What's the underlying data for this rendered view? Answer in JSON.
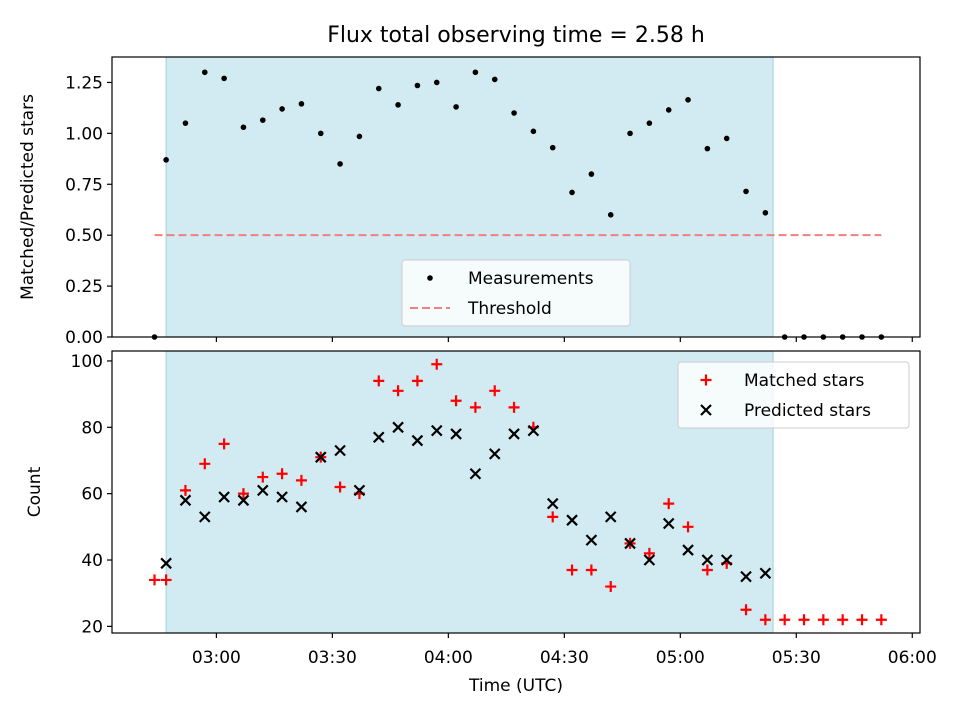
{
  "figure": {
    "title": "Flux total observing time = 2.58 h",
    "xlabel": "Time (UTC)"
  },
  "chart_data": [
    {
      "type": "scatter",
      "ylabel": "Matched/Predicted stars",
      "ylim": [
        0,
        1.375
      ],
      "yticks": [
        "0.00",
        "0.25",
        "0.50",
        "0.75",
        "1.00",
        "1.25"
      ],
      "xlim": [
        "02:33",
        "06:02"
      ],
      "xticks": [
        "03:00",
        "03:30",
        "04:00",
        "04:30",
        "05:00",
        "05:30",
        "06:00"
      ],
      "show_xtick_labels": false,
      "shaded_interval": {
        "start": "02:47",
        "end": "05:24",
        "color": "#add8e6"
      },
      "legend": {
        "position": "lower-center",
        "entries": [
          "Measurements",
          "Threshold"
        ]
      },
      "series": [
        {
          "name": "Measurements",
          "marker": "dot",
          "color": "#000000",
          "points": [
            [
              "02:44",
              0.0
            ],
            [
              "02:47",
              0.87
            ],
            [
              "02:52",
              1.05
            ],
            [
              "02:57",
              1.3
            ],
            [
              "03:02",
              1.27
            ],
            [
              "03:07",
              1.03
            ],
            [
              "03:12",
              1.065
            ],
            [
              "03:17",
              1.12
            ],
            [
              "03:22",
              1.145
            ],
            [
              "03:27",
              1.0
            ],
            [
              "03:32",
              0.85
            ],
            [
              "03:37",
              0.985
            ],
            [
              "03:42",
              1.22
            ],
            [
              "03:47",
              1.14
            ],
            [
              "03:52",
              1.235
            ],
            [
              "03:57",
              1.25
            ],
            [
              "04:02",
              1.13
            ],
            [
              "04:07",
              1.3
            ],
            [
              "04:12",
              1.265
            ],
            [
              "04:17",
              1.1
            ],
            [
              "04:22",
              1.01
            ],
            [
              "04:27",
              0.93
            ],
            [
              "04:32",
              0.71
            ],
            [
              "04:37",
              0.8
            ],
            [
              "04:42",
              0.6
            ],
            [
              "04:47",
              1.0
            ],
            [
              "04:52",
              1.05
            ],
            [
              "04:57",
              1.115
            ],
            [
              "05:02",
              1.165
            ],
            [
              "05:07",
              0.925
            ],
            [
              "05:12",
              0.975
            ],
            [
              "05:17",
              0.715
            ],
            [
              "05:22",
              0.61
            ],
            [
              "05:27",
              0.0
            ],
            [
              "05:32",
              0.0
            ],
            [
              "05:37",
              0.0
            ],
            [
              "05:42",
              0.0
            ],
            [
              "05:47",
              0.0
            ],
            [
              "05:52",
              0.0
            ]
          ]
        },
        {
          "name": "Threshold",
          "type": "line",
          "style": "dashed",
          "color": "#f08080",
          "points": [
            [
              "02:44",
              0.5
            ],
            [
              "05:52",
              0.5
            ]
          ]
        }
      ]
    },
    {
      "type": "scatter",
      "ylabel": "Count",
      "ylim": [
        18,
        103
      ],
      "yticks": [
        "20",
        "40",
        "60",
        "80",
        "100"
      ],
      "xlim": [
        "02:33",
        "06:02"
      ],
      "xticks": [
        "03:00",
        "03:30",
        "04:00",
        "04:30",
        "05:00",
        "05:30",
        "06:00"
      ],
      "show_xtick_labels": true,
      "shaded_interval": {
        "start": "02:47",
        "end": "05:24",
        "color": "#add8e6"
      },
      "legend": {
        "position": "top-right",
        "entries": [
          "Matched stars",
          "Predicted stars"
        ]
      },
      "series": [
        {
          "name": "Matched stars",
          "marker": "plus",
          "color": "#ff0000",
          "points": [
            [
              "02:44",
              34
            ],
            [
              "02:47",
              34
            ],
            [
              "02:52",
              61
            ],
            [
              "02:57",
              69
            ],
            [
              "03:02",
              75
            ],
            [
              "03:07",
              60
            ],
            [
              "03:12",
              65
            ],
            [
              "03:17",
              66
            ],
            [
              "03:22",
              64
            ],
            [
              "03:27",
              71
            ],
            [
              "03:32",
              62
            ],
            [
              "03:37",
              60
            ],
            [
              "03:42",
              94
            ],
            [
              "03:47",
              91
            ],
            [
              "03:52",
              94
            ],
            [
              "03:57",
              99
            ],
            [
              "04:02",
              88
            ],
            [
              "04:07",
              86
            ],
            [
              "04:12",
              91
            ],
            [
              "04:17",
              86
            ],
            [
              "04:22",
              80
            ],
            [
              "04:27",
              53
            ],
            [
              "04:32",
              37
            ],
            [
              "04:37",
              37
            ],
            [
              "04:42",
              32
            ],
            [
              "04:47",
              45
            ],
            [
              "04:52",
              42
            ],
            [
              "04:57",
              57
            ],
            [
              "05:02",
              50
            ],
            [
              "05:07",
              37
            ],
            [
              "05:12",
              39
            ],
            [
              "05:17",
              25
            ],
            [
              "05:22",
              22
            ],
            [
              "05:27",
              22
            ],
            [
              "05:32",
              22
            ],
            [
              "05:37",
              22
            ],
            [
              "05:42",
              22
            ],
            [
              "05:47",
              22
            ],
            [
              "05:52",
              22
            ]
          ]
        },
        {
          "name": "Predicted stars",
          "marker": "x",
          "color": "#000000",
          "points": [
            [
              "02:47",
              39
            ],
            [
              "02:52",
              58
            ],
            [
              "02:57",
              53
            ],
            [
              "03:02",
              59
            ],
            [
              "03:07",
              58
            ],
            [
              "03:12",
              61
            ],
            [
              "03:17",
              59
            ],
            [
              "03:22",
              56
            ],
            [
              "03:27",
              71
            ],
            [
              "03:32",
              73
            ],
            [
              "03:37",
              61
            ],
            [
              "03:42",
              77
            ],
            [
              "03:47",
              80
            ],
            [
              "03:52",
              76
            ],
            [
              "03:57",
              79
            ],
            [
              "04:02",
              78
            ],
            [
              "04:07",
              66
            ],
            [
              "04:12",
              72
            ],
            [
              "04:17",
              78
            ],
            [
              "04:22",
              79
            ],
            [
              "04:27",
              57
            ],
            [
              "04:32",
              52
            ],
            [
              "04:37",
              46
            ],
            [
              "04:42",
              53
            ],
            [
              "04:47",
              45
            ],
            [
              "04:52",
              40
            ],
            [
              "04:57",
              51
            ],
            [
              "05:02",
              43
            ],
            [
              "05:07",
              40
            ],
            [
              "05:12",
              40
            ],
            [
              "05:17",
              35
            ],
            [
              "05:22",
              36
            ]
          ]
        }
      ]
    }
  ]
}
